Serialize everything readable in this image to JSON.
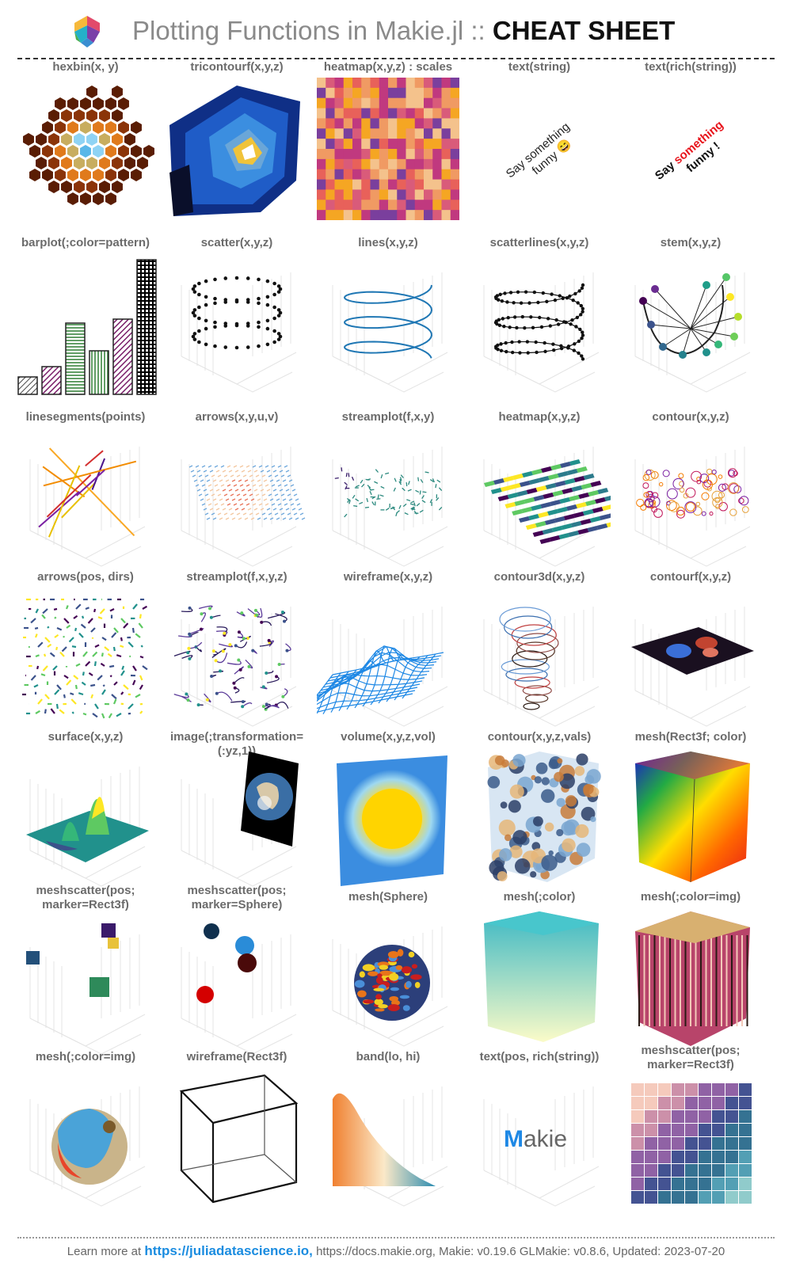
{
  "header": {
    "title_light": "Plotting Functions in Makie.jl ::",
    "title_bold": "CHEAT SHEET"
  },
  "rows": [
    [
      "hexbin(x, y)",
      "tricontourf(x,y,z)",
      "heatmap(x,y,z) : scales",
      "text(string)",
      "text(rich(string))"
    ],
    [
      "barplot(;color=pattern)",
      "scatter(x,y,z)",
      "lines(x,y,z)",
      "scatterlines(x,y,z)",
      "stem(x,y,z)"
    ],
    [
      "linesegments(points)",
      "arrows(x,y,u,v)",
      "streamplot(f,x,y)",
      "heatmap(x,y,z)",
      "contour(x,y,z)"
    ],
    [
      "arrows(pos, dirs)",
      "streamplot(f,x,y,z)",
      "wireframe(x,y,z)",
      "contour3d(x,y,z)",
      "contourf(x,y,z)"
    ],
    [
      "surface(x,y,z)",
      "image(;transformation=(:yz,1))",
      "volume(x,y,z,vol)",
      "contour(x,y,z,vals)",
      "mesh(Rect3f; color)"
    ],
    [
      "meshscatter(pos;\nmarker=Rect3f)",
      "meshscatter(pos;\nmarker=Sphere)",
      "mesh(Sphere)",
      "mesh(;color)",
      "mesh(;color=img)"
    ],
    [
      "mesh(;color=img)",
      "wireframe(Rect3f)",
      "band(lo, hi)",
      "text(pos, rich(string))",
      "meshscatter(pos;\nmarker=Rect3f)"
    ]
  ],
  "plot_text": {
    "say_plain_1": "Say something",
    "say_plain_2": "funny 😄",
    "rich_say": "Say",
    "rich_something": "something",
    "rich_funny": "funny !",
    "makie_M": "M",
    "makie_rest": "akie"
  },
  "footer": {
    "prefix": "Learn more at",
    "link": "https://juliadatascience.io,",
    "suffix": "https://docs.makie.org, Makie: v0.19.6 GLMakie: v0.8.6, Updated: 2023-07-20"
  },
  "colors": {
    "accent_link": "#1a8ce0",
    "caption": "#6b6b6b",
    "rich_red": "#e8141c"
  }
}
